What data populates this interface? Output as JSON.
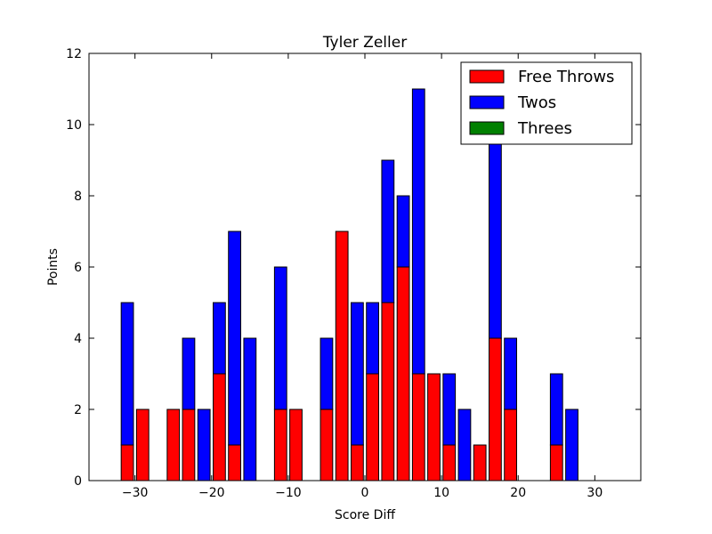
{
  "chart_data": {
    "type": "bar",
    "stacked": true,
    "title": "Tyler Zeller",
    "xlabel": "Score Diff",
    "ylabel": "Points",
    "xlim": [
      -36,
      36
    ],
    "ylim": [
      0,
      12
    ],
    "x_ticks": [
      -30,
      -20,
      -10,
      0,
      10,
      20,
      30
    ],
    "x_tick_labels": [
      "−30",
      "−20",
      "−10",
      "0",
      "10",
      "20",
      "30"
    ],
    "y_ticks": [
      0,
      2,
      4,
      6,
      8,
      10,
      12
    ],
    "y_tick_labels": [
      "0",
      "2",
      "4",
      "6",
      "8",
      "10",
      "12"
    ],
    "bar_width": 1.6,
    "grid": false,
    "legend_position": "top-right",
    "x": [
      -35,
      -33,
      -31,
      -29,
      -27,
      -25,
      -23,
      -21,
      -19,
      -17,
      -15,
      -13,
      -11,
      -9,
      -7,
      -5,
      -3,
      -1,
      1,
      3,
      5,
      7,
      9,
      11,
      13,
      15,
      17,
      19,
      21,
      23,
      25,
      27,
      29,
      31,
      33,
      35
    ],
    "series": [
      {
        "name": "Free Throws",
        "color": "#ff0000",
        "values": [
          0,
          0,
          1,
          2,
          0,
          2,
          2,
          0,
          3,
          1,
          0,
          0,
          2,
          2,
          0,
          2,
          7,
          1,
          3,
          5,
          6,
          3,
          3,
          1,
          0,
          1,
          4,
          2,
          0,
          0,
          1,
          0,
          0,
          0,
          0,
          0
        ]
      },
      {
        "name": "Twos",
        "color": "#0000ff",
        "values": [
          0,
          0,
          4,
          0,
          0,
          0,
          2,
          2,
          2,
          6,
          4,
          0,
          4,
          0,
          0,
          2,
          0,
          4,
          2,
          4,
          2,
          8,
          0,
          2,
          2,
          0,
          6,
          2,
          0,
          0,
          2,
          2,
          0,
          0,
          0,
          0
        ]
      },
      {
        "name": "Threes",
        "color": "#008000",
        "values": [
          0,
          0,
          0,
          0,
          0,
          0,
          0,
          0,
          0,
          0,
          0,
          0,
          0,
          0,
          0,
          0,
          0,
          0,
          0,
          0,
          0,
          0,
          0,
          0,
          0,
          0,
          0,
          0,
          0,
          0,
          0,
          0,
          0,
          0,
          0,
          0
        ]
      }
    ]
  }
}
